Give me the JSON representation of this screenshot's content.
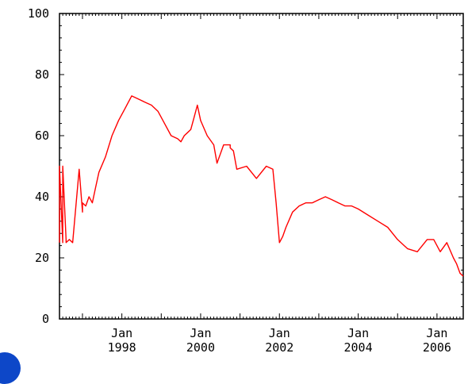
{
  "chart_data": {
    "type": "line",
    "title": "",
    "xlabel": "",
    "ylabel": "",
    "ylim": [
      0,
      100
    ],
    "xlim": [
      "1996-06",
      "2006-09"
    ],
    "y_ticks": [
      0,
      20,
      40,
      60,
      80,
      100
    ],
    "y_tick_labels": [
      "0",
      "20",
      "40",
      "60",
      "80",
      "100"
    ],
    "x_tick_labels": [
      {
        "month": "Jan",
        "year": "1998"
      },
      {
        "month": "Jan",
        "year": "2000"
      },
      {
        "month": "Jan",
        "year": "2002"
      },
      {
        "month": "Jan",
        "year": "2004"
      },
      {
        "month": "Jan",
        "year": "2006"
      }
    ],
    "grid": false,
    "series": [
      {
        "color": "#ff0000",
        "x": [
          "1996-06",
          "1996-06",
          "1996-07",
          "1996-07",
          "1996-08",
          "1996-08",
          "1996-09",
          "1996-10",
          "1996-12",
          "1997-01",
          "1997-01",
          "1997-02",
          "1997-03",
          "1997-04",
          "1997-05",
          "1997-06",
          "1997-08",
          "1997-10",
          "1997-12",
          "1998-02",
          "1998-04",
          "1998-06",
          "1998-08",
          "1998-10",
          "1998-12",
          "1999-02",
          "1999-04",
          "1999-06",
          "1999-07",
          "1999-08",
          "1999-09",
          "1999-10",
          "1999-11",
          "1999-12",
          "2000-01",
          "2000-03",
          "2000-05",
          "2000-06",
          "2000-08",
          "2000-09",
          "2000-10",
          "2000-10",
          "2000-11",
          "2000-12",
          "2001-03",
          "2001-06",
          "2001-09",
          "2001-11",
          "2001-12",
          "2002-01",
          "2002-02",
          "2002-03",
          "2002-05",
          "2002-07",
          "2002-09",
          "2002-11",
          "2003-01",
          "2003-03",
          "2003-05",
          "2003-07",
          "2003-09",
          "2003-11",
          "2004-01",
          "2004-04",
          "2004-07",
          "2004-10",
          "2005-01",
          "2005-04",
          "2005-07",
          "2005-10",
          "2005-12",
          "2006-02",
          "2006-04",
          "2006-06",
          "2006-07",
          "2006-08",
          "2006-09"
        ],
        "y": [
          25,
          50,
          25,
          50,
          26,
          25,
          26,
          25,
          49,
          35,
          38,
          37,
          40,
          38,
          43,
          48,
          53,
          60,
          65,
          69,
          73,
          72,
          71,
          70,
          68,
          64,
          60,
          59,
          58,
          60,
          61,
          62,
          66,
          70,
          65,
          60,
          57,
          51,
          57,
          57,
          57,
          56,
          55,
          49,
          50,
          46,
          50,
          49,
          38,
          25,
          27,
          30,
          35,
          37,
          38,
          38,
          39,
          40,
          39,
          38,
          37,
          37,
          36,
          34,
          32,
          30,
          26,
          23,
          22,
          26,
          26,
          22,
          25,
          20,
          18,
          15,
          14
        ]
      }
    ]
  }
}
